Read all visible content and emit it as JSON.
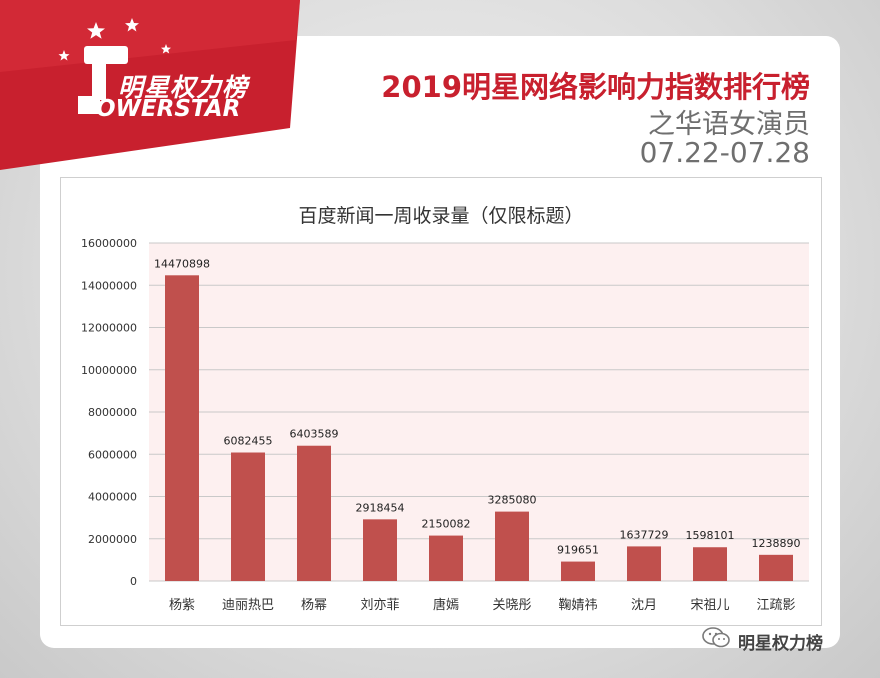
{
  "brand": {
    "name_cn": "明星权力榜",
    "name_en": "OWERSTAR"
  },
  "header": {
    "headline": "2019明星网络影响力指数排行榜",
    "subhead": "之华语女演员",
    "date_range": "07.22-07.28"
  },
  "footer": {
    "account_name": "明星权力榜"
  },
  "colors": {
    "brand_red": "#c8202e",
    "bar": "#c0504d",
    "plot_bg": "#fdf0f0"
  },
  "chart_data": {
    "type": "bar",
    "title": "百度新闻一周收录量（仅限标题）",
    "categories": [
      "杨紫",
      "迪丽热巴",
      "杨幂",
      "刘亦菲",
      "唐嫣",
      "关晓彤",
      "鞠婧祎",
      "沈月",
      "宋祖儿",
      "江疏影"
    ],
    "values": [
      14470898,
      6082455,
      6403589,
      2918454,
      2150082,
      3285080,
      919651,
      1637729,
      1598101,
      1238890
    ],
    "yticks": [
      "0",
      "2000000",
      "4000000",
      "6000000",
      "8000000",
      "10000000",
      "12000000",
      "14000000",
      "16000000"
    ],
    "ylim": [
      0,
      16000000
    ],
    "grid": true,
    "legend": false
  }
}
